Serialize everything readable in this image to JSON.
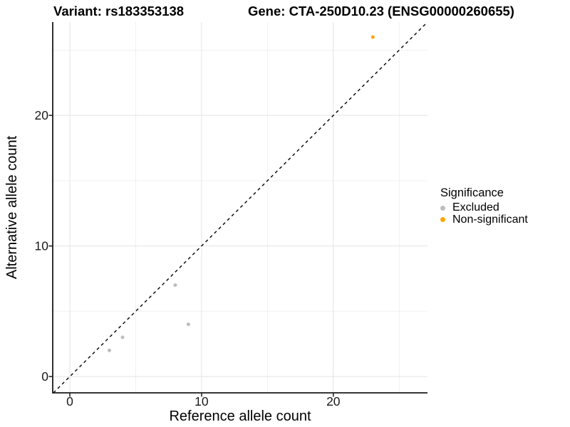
{
  "header": {
    "variant_title": "Variant: rs183353138",
    "gene_title": "Gene: CTA-250D10.23 (ENSG00000260655)"
  },
  "chart_data": {
    "type": "scatter",
    "title_left": "Variant: rs183353138",
    "title_right": "Gene: CTA-250D10.23 (ENSG00000260655)",
    "xlabel": "Reference allele count",
    "ylabel": "Alternative allele count",
    "xlim": [
      -1.3,
      27.15
    ],
    "ylim": [
      -1.25,
      27.15
    ],
    "x_ticks": [
      0,
      10,
      20
    ],
    "y_ticks": [
      0,
      10,
      20
    ],
    "x_minor_ticks": [
      5,
      15,
      25
    ],
    "y_minor_ticks": [
      5,
      15,
      25
    ],
    "grid": "major+minor",
    "identity_line": {
      "style": "dashed",
      "color": "#000000",
      "slope": 1,
      "intercept": 0
    },
    "series": [
      {
        "name": "Excluded",
        "color": "#bdbdbd",
        "points": [
          [
            3,
            2
          ],
          [
            4,
            3
          ],
          [
            8,
            7
          ],
          [
            9,
            4
          ]
        ]
      },
      {
        "name": "Non-significant",
        "color": "#FFA500",
        "points": [
          [
            23,
            26
          ]
        ]
      }
    ]
  },
  "legend": {
    "title": "Significance",
    "position": "right",
    "items": [
      {
        "label": "Excluded",
        "color": "#bdbdbd"
      },
      {
        "label": "Non-significant",
        "color": "#FFA500"
      }
    ]
  },
  "colors": {
    "grid_major": "#e4e4e4",
    "grid_minor": "#efefef",
    "axis": "#1a1a1a",
    "tick_text": "#1a1a1a",
    "background": "#ffffff"
  }
}
